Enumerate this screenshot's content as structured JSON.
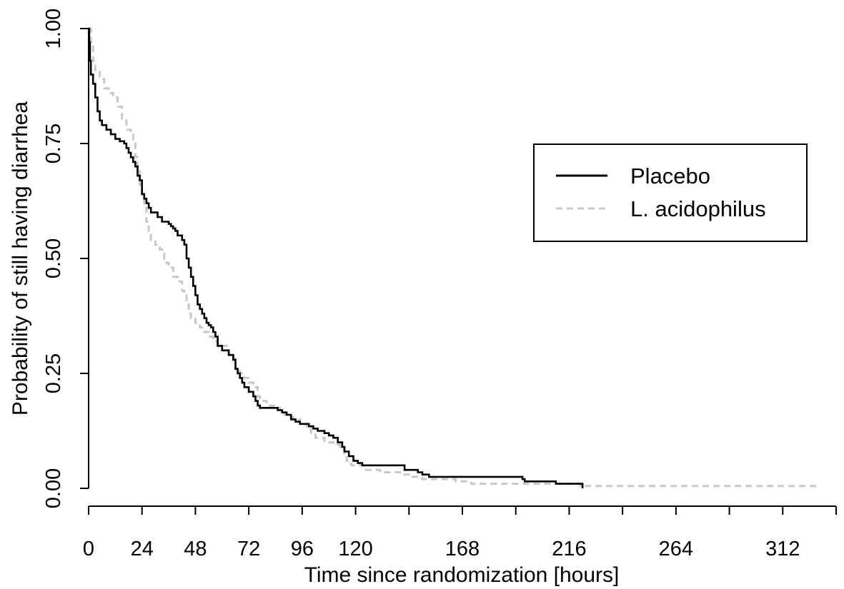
{
  "chart_data": {
    "type": "line",
    "subtype": "kaplan-meier step curve",
    "title": "",
    "xlabel": "Time since randomization [hours]",
    "ylabel": "Probability of still having diarrhea",
    "xlim": [
      0,
      336
    ],
    "ylim": [
      0,
      1
    ],
    "x_ticks": [
      0,
      24,
      48,
      72,
      96,
      120,
      144,
      168,
      192,
      216,
      240,
      264,
      288,
      312,
      336
    ],
    "x_tick_labels": [
      "0",
      "24",
      "48",
      "72",
      "96",
      "120",
      "",
      "168",
      "",
      "216",
      "",
      "264",
      "",
      "312",
      ""
    ],
    "y_ticks": [
      0,
      0.25,
      0.5,
      0.75,
      1.0
    ],
    "y_tick_labels": [
      "0.00",
      "0.25",
      "0.50",
      "0.75",
      "1.00"
    ],
    "grid": false,
    "legend": {
      "position": "top-right",
      "entries": [
        {
          "label": "Placebo",
          "color": "#000000",
          "dash": "solid"
        },
        {
          "label": "L. acidophilus",
          "color": "#c8c8c8",
          "dash": "dashed"
        }
      ]
    },
    "series": [
      {
        "name": "Placebo",
        "color": "#000000",
        "dash": "solid",
        "points": [
          [
            0,
            1.0
          ],
          [
            0.3,
            0.97
          ],
          [
            0.6,
            0.93
          ],
          [
            1,
            0.9
          ],
          [
            2,
            0.88
          ],
          [
            3,
            0.85
          ],
          [
            4,
            0.82
          ],
          [
            5,
            0.8
          ],
          [
            6,
            0.79
          ],
          [
            8,
            0.78
          ],
          [
            10,
            0.77
          ],
          [
            12,
            0.76
          ],
          [
            14,
            0.755
          ],
          [
            16,
            0.75
          ],
          [
            17,
            0.74
          ],
          [
            18,
            0.73
          ],
          [
            19,
            0.72
          ],
          [
            20,
            0.71
          ],
          [
            21,
            0.7
          ],
          [
            22,
            0.68
          ],
          [
            23,
            0.67
          ],
          [
            24,
            0.64
          ],
          [
            25,
            0.63
          ],
          [
            26,
            0.62
          ],
          [
            27,
            0.61
          ],
          [
            28,
            0.6
          ],
          [
            30,
            0.6
          ],
          [
            31,
            0.59
          ],
          [
            33,
            0.58
          ],
          [
            36,
            0.575
          ],
          [
            37,
            0.57
          ],
          [
            38,
            0.565
          ],
          [
            39,
            0.56
          ],
          [
            40,
            0.55
          ],
          [
            42,
            0.54
          ],
          [
            43,
            0.53
          ],
          [
            44,
            0.5
          ],
          [
            45,
            0.48
          ],
          [
            46,
            0.46
          ],
          [
            47,
            0.44
          ],
          [
            48,
            0.42
          ],
          [
            49,
            0.4
          ],
          [
            50,
            0.39
          ],
          [
            51,
            0.38
          ],
          [
            52,
            0.37
          ],
          [
            53,
            0.36
          ],
          [
            54,
            0.355
          ],
          [
            55,
            0.35
          ],
          [
            56,
            0.34
          ],
          [
            57,
            0.33
          ],
          [
            58,
            0.31
          ],
          [
            60,
            0.3
          ],
          [
            62,
            0.3
          ],
          [
            63,
            0.29
          ],
          [
            65,
            0.28
          ],
          [
            66,
            0.26
          ],
          [
            67,
            0.25
          ],
          [
            68,
            0.24
          ],
          [
            69,
            0.23
          ],
          [
            70,
            0.22
          ],
          [
            72,
            0.21
          ],
          [
            74,
            0.2
          ],
          [
            75,
            0.19
          ],
          [
            76,
            0.18
          ],
          [
            77,
            0.175
          ],
          [
            84,
            0.175
          ],
          [
            85,
            0.17
          ],
          [
            87,
            0.165
          ],
          [
            89,
            0.16
          ],
          [
            91,
            0.15
          ],
          [
            93,
            0.145
          ],
          [
            95,
            0.14
          ],
          [
            99,
            0.135
          ],
          [
            101,
            0.13
          ],
          [
            103,
            0.125
          ],
          [
            106,
            0.12
          ],
          [
            108,
            0.115
          ],
          [
            110,
            0.11
          ],
          [
            112,
            0.1
          ],
          [
            114,
            0.09
          ],
          [
            115,
            0.08
          ],
          [
            117,
            0.07
          ],
          [
            119,
            0.06
          ],
          [
            121,
            0.055
          ],
          [
            123,
            0.05
          ],
          [
            140,
            0.05
          ],
          [
            142,
            0.04
          ],
          [
            148,
            0.035
          ],
          [
            150,
            0.03
          ],
          [
            153,
            0.025
          ],
          [
            194,
            0.025
          ],
          [
            195,
            0.02
          ],
          [
            196,
            0.015
          ],
          [
            209,
            0.015
          ],
          [
            210,
            0.01
          ],
          [
            221,
            0.01
          ],
          [
            222,
            0.0
          ]
        ]
      },
      {
        "name": "L. acidophilus",
        "color": "#c8c8c8",
        "dash": "dashed",
        "points": [
          [
            0,
            1.0
          ],
          [
            1,
            0.97
          ],
          [
            2,
            0.93
          ],
          [
            3,
            0.91
          ],
          [
            5,
            0.89
          ],
          [
            7,
            0.87
          ],
          [
            9,
            0.86
          ],
          [
            11,
            0.85
          ],
          [
            13,
            0.83
          ],
          [
            15,
            0.8
          ],
          [
            17,
            0.78
          ],
          [
            19,
            0.77
          ],
          [
            20,
            0.75
          ],
          [
            21,
            0.72
          ],
          [
            22,
            0.7
          ],
          [
            23,
            0.66
          ],
          [
            24,
            0.63
          ],
          [
            25,
            0.61
          ],
          [
            26,
            0.58
          ],
          [
            27,
            0.56
          ],
          [
            28,
            0.54
          ],
          [
            30,
            0.53
          ],
          [
            32,
            0.52
          ],
          [
            33,
            0.51
          ],
          [
            34,
            0.5
          ],
          [
            35,
            0.49
          ],
          [
            36,
            0.48
          ],
          [
            38,
            0.46
          ],
          [
            40,
            0.45
          ],
          [
            42,
            0.43
          ],
          [
            43,
            0.42
          ],
          [
            44,
            0.4
          ],
          [
            45,
            0.38
          ],
          [
            46,
            0.37
          ],
          [
            48,
            0.36
          ],
          [
            50,
            0.35
          ],
          [
            52,
            0.34
          ],
          [
            54,
            0.33
          ],
          [
            56,
            0.32
          ],
          [
            58,
            0.315
          ],
          [
            60,
            0.31
          ],
          [
            62,
            0.31
          ],
          [
            63,
            0.29
          ],
          [
            65,
            0.27
          ],
          [
            66,
            0.26
          ],
          [
            68,
            0.25
          ],
          [
            70,
            0.24
          ],
          [
            72,
            0.23
          ],
          [
            74,
            0.22
          ],
          [
            76,
            0.2
          ],
          [
            77,
            0.19
          ],
          [
            80,
            0.18
          ],
          [
            84,
            0.175
          ],
          [
            86,
            0.17
          ],
          [
            88,
            0.16
          ],
          [
            90,
            0.155
          ],
          [
            92,
            0.15
          ],
          [
            95,
            0.14
          ],
          [
            98,
            0.13
          ],
          [
            100,
            0.12
          ],
          [
            102,
            0.11
          ],
          [
            106,
            0.1
          ],
          [
            110,
            0.095
          ],
          [
            113,
            0.085
          ],
          [
            115,
            0.075
          ],
          [
            116,
            0.06
          ],
          [
            118,
            0.05
          ],
          [
            124,
            0.04
          ],
          [
            131,
            0.035
          ],
          [
            140,
            0.03
          ],
          [
            144,
            0.025
          ],
          [
            150,
            0.02
          ],
          [
            165,
            0.015
          ],
          [
            172,
            0.01
          ],
          [
            220,
            0.01
          ],
          [
            221,
            0.005
          ],
          [
            329,
            0.005
          ]
        ]
      }
    ]
  }
}
